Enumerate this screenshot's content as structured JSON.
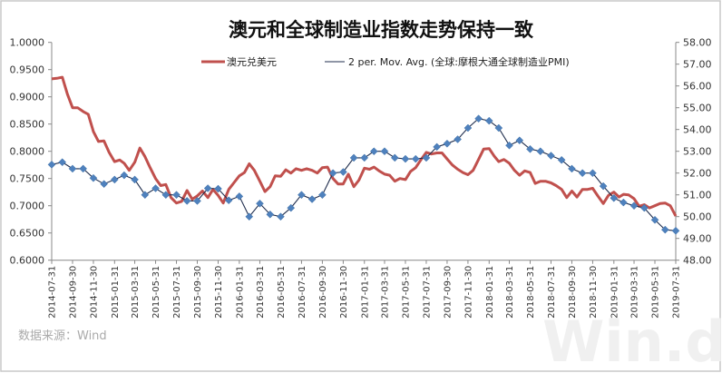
{
  "chart_data": {
    "type": "line",
    "title": "澳元和全球制造业指数走势保持一致",
    "source": "数据来源：Wind",
    "watermark": "Win.d",
    "legend_placement": "top",
    "grid": false,
    "x_ticks": [
      "2014-07-31",
      "2014-09-30",
      "2014-11-30",
      "2015-01-31",
      "2015-03-31",
      "2015-05-31",
      "2015-07-31",
      "2015-09-30",
      "2015-11-30",
      "2016-01-31",
      "2016-03-31",
      "2016-05-31",
      "2016-07-31",
      "2016-09-30",
      "2016-11-30",
      "2017-01-31",
      "2017-03-31",
      "2017-05-31",
      "2017-07-31",
      "2017-09-30",
      "2017-11-30",
      "2018-01-31",
      "2018-03-31",
      "2018-05-31",
      "2018-07-31",
      "2018-09-30",
      "2018-11-30",
      "2019-01-31",
      "2019-03-31",
      "2019-05-31",
      "2019-07-31"
    ],
    "xlim": [
      "2014-07-31",
      "2019-07-31"
    ],
    "y_left": {
      "lim": [
        0.6,
        1.0
      ],
      "ticks": [
        "1.0000",
        "0.9500",
        "0.9000",
        "0.8500",
        "0.8000",
        "0.7500",
        "0.7000",
        "0.6500",
        "0.6000"
      ]
    },
    "y_right": {
      "lim": [
        48,
        58
      ],
      "ticks": [
        "58.00",
        "57.00",
        "56.00",
        "55.00",
        "54.00",
        "53.00",
        "52.00",
        "51.00",
        "50.00",
        "49.00",
        "48.00"
      ]
    },
    "series": [
      {
        "name": "澳元兑美元",
        "axis": "left",
        "color": "#c0504d",
        "dates": [
          "2014-07-31",
          "2014-08-15",
          "2014-08-31",
          "2014-09-15",
          "2014-09-30",
          "2014-10-15",
          "2014-10-31",
          "2014-11-15",
          "2014-11-30",
          "2014-12-15",
          "2014-12-31",
          "2015-01-15",
          "2015-01-31",
          "2015-02-15",
          "2015-02-28",
          "2015-03-15",
          "2015-03-31",
          "2015-04-15",
          "2015-04-30",
          "2015-05-15",
          "2015-05-31",
          "2015-06-15",
          "2015-06-30",
          "2015-07-15",
          "2015-07-31",
          "2015-08-15",
          "2015-08-31",
          "2015-09-15",
          "2015-09-30",
          "2015-10-15",
          "2015-10-31",
          "2015-11-15",
          "2015-11-30",
          "2015-12-15",
          "2015-12-31",
          "2016-01-15",
          "2016-01-31",
          "2016-02-15",
          "2016-02-29",
          "2016-03-15",
          "2016-03-31",
          "2016-04-15",
          "2016-04-30",
          "2016-05-15",
          "2016-05-31",
          "2016-06-15",
          "2016-06-30",
          "2016-07-15",
          "2016-07-31",
          "2016-08-15",
          "2016-08-31",
          "2016-09-15",
          "2016-09-30",
          "2016-10-15",
          "2016-10-31",
          "2016-11-15",
          "2016-11-30",
          "2016-12-15",
          "2016-12-31",
          "2017-01-15",
          "2017-01-31",
          "2017-02-15",
          "2017-02-28",
          "2017-03-15",
          "2017-03-31",
          "2017-04-15",
          "2017-04-30",
          "2017-05-15",
          "2017-05-31",
          "2017-06-15",
          "2017-06-30",
          "2017-07-15",
          "2017-07-31",
          "2017-08-15",
          "2017-08-31",
          "2017-09-15",
          "2017-09-30",
          "2017-10-15",
          "2017-10-31",
          "2017-11-15",
          "2017-11-30",
          "2017-12-15",
          "2017-12-31",
          "2018-01-15",
          "2018-01-31",
          "2018-02-15",
          "2018-02-28",
          "2018-03-15",
          "2018-03-31",
          "2018-04-15",
          "2018-04-30",
          "2018-05-15",
          "2018-05-31",
          "2018-06-15",
          "2018-06-30",
          "2018-07-15",
          "2018-07-31",
          "2018-08-15",
          "2018-08-31",
          "2018-09-15",
          "2018-09-30",
          "2018-10-15",
          "2018-10-31",
          "2018-11-15",
          "2018-11-30",
          "2018-12-15",
          "2018-12-31",
          "2019-01-15",
          "2019-01-31",
          "2019-02-15",
          "2019-02-28",
          "2019-03-15",
          "2019-03-31",
          "2019-04-15",
          "2019-04-30",
          "2019-05-15",
          "2019-05-31",
          "2019-06-15",
          "2019-06-30",
          "2019-07-15",
          "2019-07-31"
        ],
        "values": [
          0.933,
          0.934,
          0.936,
          0.905,
          0.88,
          0.88,
          0.873,
          0.868,
          0.836,
          0.818,
          0.819,
          0.798,
          0.781,
          0.784,
          0.778,
          0.765,
          0.78,
          0.806,
          0.79,
          0.77,
          0.75,
          0.737,
          0.739,
          0.715,
          0.705,
          0.708,
          0.728,
          0.712,
          0.718,
          0.727,
          0.715,
          0.73,
          0.719,
          0.705,
          0.73,
          0.742,
          0.755,
          0.761,
          0.777,
          0.765,
          0.745,
          0.726,
          0.735,
          0.755,
          0.754,
          0.766,
          0.76,
          0.768,
          0.765,
          0.768,
          0.765,
          0.76,
          0.77,
          0.771,
          0.75,
          0.74,
          0.74,
          0.758,
          0.735,
          0.747,
          0.769,
          0.767,
          0.771,
          0.764,
          0.758,
          0.756,
          0.745,
          0.75,
          0.748,
          0.763,
          0.77,
          0.784,
          0.798,
          0.795,
          0.797,
          0.797,
          0.786,
          0.775,
          0.767,
          0.761,
          0.757,
          0.765,
          0.785,
          0.804,
          0.805,
          0.791,
          0.781,
          0.785,
          0.778,
          0.765,
          0.756,
          0.764,
          0.761,
          0.741,
          0.745,
          0.745,
          0.742,
          0.737,
          0.73,
          0.715,
          0.727,
          0.716,
          0.73,
          0.73,
          0.732,
          0.718,
          0.704,
          0.719,
          0.725,
          0.716,
          0.721,
          0.72,
          0.713,
          0.699,
          0.702,
          0.696,
          0.7,
          0.704,
          0.705,
          0.7,
          0.681
        ]
      },
      {
        "name": "2 per. Mov. Avg. (全球:摩根大通全球制造业PMI)",
        "axis": "right",
        "color": "#1f2d4d",
        "marker_color": "#4f81bd",
        "marker": "diamond",
        "dates": [
          "2014-07-31",
          "2014-08-31",
          "2014-09-30",
          "2014-10-31",
          "2014-11-30",
          "2014-12-31",
          "2015-01-31",
          "2015-02-28",
          "2015-03-31",
          "2015-04-30",
          "2015-05-31",
          "2015-06-30",
          "2015-07-31",
          "2015-08-31",
          "2015-09-30",
          "2015-10-31",
          "2015-11-30",
          "2015-12-31",
          "2016-01-31",
          "2016-02-29",
          "2016-03-31",
          "2016-04-30",
          "2016-05-31",
          "2016-06-30",
          "2016-07-31",
          "2016-08-31",
          "2016-09-30",
          "2016-10-31",
          "2016-11-30",
          "2016-12-31",
          "2017-01-31",
          "2017-02-28",
          "2017-03-31",
          "2017-04-30",
          "2017-05-31",
          "2017-06-30",
          "2017-07-31",
          "2017-08-31",
          "2017-09-30",
          "2017-10-31",
          "2017-11-30",
          "2017-12-31",
          "2018-01-31",
          "2018-02-28",
          "2018-03-31",
          "2018-04-30",
          "2018-05-31",
          "2018-06-30",
          "2018-07-31",
          "2018-08-31",
          "2018-09-30",
          "2018-10-31",
          "2018-11-30",
          "2018-12-31",
          "2019-01-31",
          "2019-02-28",
          "2019-03-31",
          "2019-04-30",
          "2019-05-31",
          "2019-06-30",
          "2019-07-31"
        ],
        "values": [
          52.39,
          52.5,
          52.2,
          52.2,
          51.77,
          51.5,
          51.7,
          51.9,
          51.7,
          51.0,
          51.3,
          51.0,
          51.0,
          50.72,
          50.72,
          51.3,
          51.28,
          50.75,
          50.93,
          50.0,
          50.6,
          50.1,
          50.0,
          50.4,
          51.0,
          50.8,
          51.0,
          52.0,
          52.05,
          52.7,
          52.7,
          53.0,
          53.0,
          52.7,
          52.65,
          52.65,
          52.7,
          53.2,
          53.35,
          53.55,
          54.07,
          54.5,
          54.4,
          54.07,
          53.27,
          53.5,
          53.1,
          53.0,
          52.8,
          52.6,
          52.2,
          52.0,
          52.0,
          51.4,
          50.85,
          50.65,
          50.5,
          50.4,
          49.85,
          49.4,
          49.35
        ]
      }
    ]
  }
}
